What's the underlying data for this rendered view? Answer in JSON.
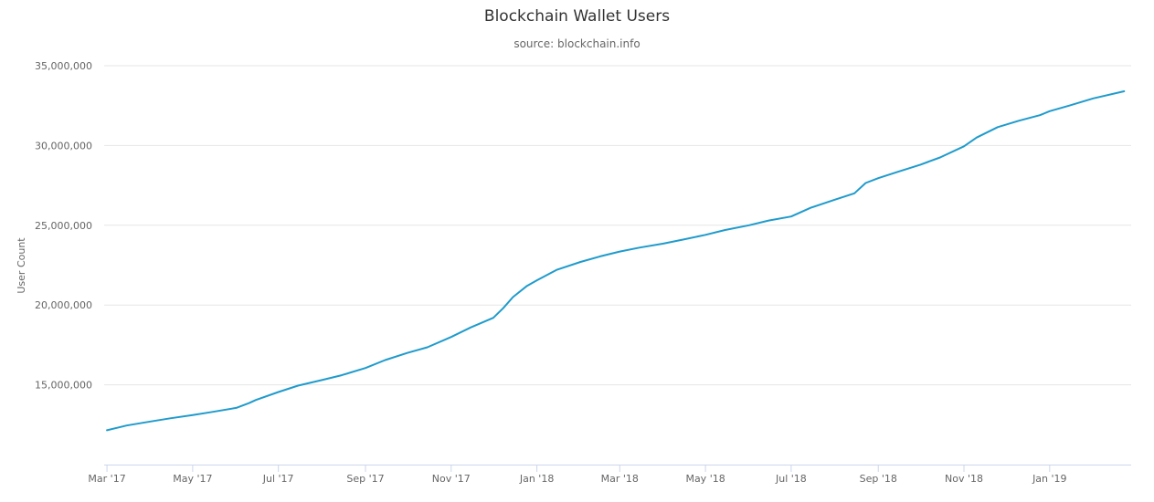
{
  "chart_data": {
    "type": "line",
    "title": "Blockchain Wallet Users",
    "subtitle": "source: blockchain.info",
    "xlabel": "",
    "ylabel": "User Count",
    "ylim": [
      10000000,
      35000000
    ],
    "y_ticks": [
      15000000,
      20000000,
      25000000,
      30000000,
      35000000
    ],
    "y_tick_labels": [
      "15,000,000",
      "20,000,000",
      "25,000,000",
      "30,000,000",
      "35,000,000"
    ],
    "x_range": [
      "2017-02-27",
      "2019-02-28"
    ],
    "x_ticks": [
      "2017-03-01",
      "2017-05-01",
      "2017-07-01",
      "2017-09-01",
      "2017-11-01",
      "2018-01-01",
      "2018-03-01",
      "2018-05-01",
      "2018-07-01",
      "2018-09-01",
      "2018-11-01",
      "2019-01-01"
    ],
    "x_tick_labels": [
      "Mar '17",
      "May '17",
      "Jul '17",
      "Sep '17",
      "Nov '17",
      "Jan '18",
      "Mar '18",
      "May '18",
      "Jul '18",
      "Sep '18",
      "Nov '18",
      "Jan '19"
    ],
    "grid": true,
    "legend": "none",
    "series": [
      {
        "color": "#1f9bcc",
        "points": [
          [
            "2017-03-01",
            12150000
          ],
          [
            "2017-03-15",
            12450000
          ],
          [
            "2017-04-01",
            12700000
          ],
          [
            "2017-04-15",
            12900000
          ],
          [
            "2017-05-01",
            13100000
          ],
          [
            "2017-05-15",
            13300000
          ],
          [
            "2017-06-01",
            13550000
          ],
          [
            "2017-06-10",
            13850000
          ],
          [
            "2017-06-15",
            14050000
          ],
          [
            "2017-07-01",
            14550000
          ],
          [
            "2017-07-15",
            14950000
          ],
          [
            "2017-08-01",
            15300000
          ],
          [
            "2017-08-15",
            15600000
          ],
          [
            "2017-09-01",
            16050000
          ],
          [
            "2017-09-15",
            16550000
          ],
          [
            "2017-10-01",
            17000000
          ],
          [
            "2017-10-15",
            17350000
          ],
          [
            "2017-11-01",
            18000000
          ],
          [
            "2017-11-15",
            18600000
          ],
          [
            "2017-12-01",
            19200000
          ],
          [
            "2017-12-08",
            19800000
          ],
          [
            "2017-12-15",
            20500000
          ],
          [
            "2017-12-25",
            21200000
          ],
          [
            "2018-01-01",
            21550000
          ],
          [
            "2018-01-15",
            22200000
          ],
          [
            "2018-02-01",
            22700000
          ],
          [
            "2018-02-15",
            23050000
          ],
          [
            "2018-03-01",
            23350000
          ],
          [
            "2018-03-15",
            23600000
          ],
          [
            "2018-04-01",
            23850000
          ],
          [
            "2018-04-15",
            24100000
          ],
          [
            "2018-05-01",
            24400000
          ],
          [
            "2018-05-15",
            24700000
          ],
          [
            "2018-06-01",
            25000000
          ],
          [
            "2018-06-15",
            25300000
          ],
          [
            "2018-07-01",
            25550000
          ],
          [
            "2018-07-15",
            26100000
          ],
          [
            "2018-08-01",
            26600000
          ],
          [
            "2018-08-15",
            27000000
          ],
          [
            "2018-08-23",
            27650000
          ],
          [
            "2018-09-01",
            27950000
          ],
          [
            "2018-09-15",
            28350000
          ],
          [
            "2018-10-01",
            28800000
          ],
          [
            "2018-10-15",
            29250000
          ],
          [
            "2018-11-01",
            29950000
          ],
          [
            "2018-11-10",
            30500000
          ],
          [
            "2018-11-25",
            31150000
          ],
          [
            "2018-12-10",
            31550000
          ],
          [
            "2018-12-25",
            31900000
          ],
          [
            "2019-01-01",
            32150000
          ],
          [
            "2019-01-15",
            32500000
          ],
          [
            "2019-02-01",
            32950000
          ],
          [
            "2019-02-23",
            33400000
          ]
        ]
      }
    ]
  }
}
